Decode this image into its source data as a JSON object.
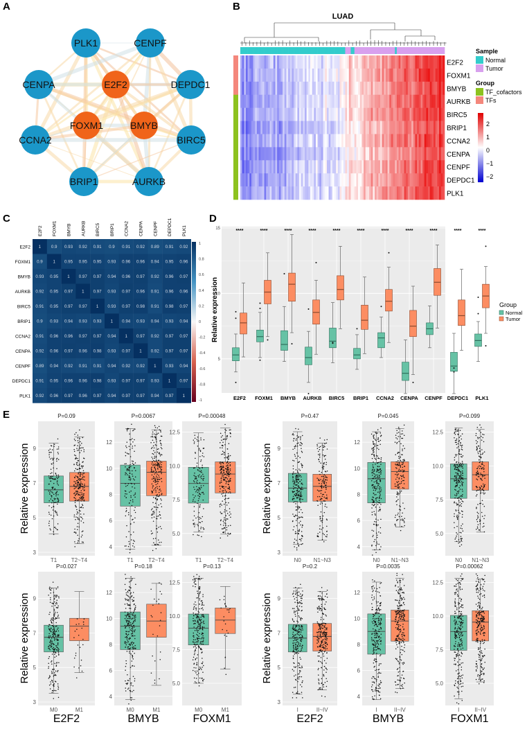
{
  "panel_labels": {
    "a": "A",
    "b": "B",
    "c": "C",
    "d": "D",
    "e": "E"
  },
  "colors": {
    "node_tf_cofactor": "#1b97c9",
    "node_tf": "#f0641a",
    "normal": "#66c2a5",
    "tumor": "#fc8d62",
    "sample_normal": "#33cccc",
    "sample_tumor": "#d8a0ee",
    "group_tf_cofactors": "#8dc21f",
    "group_tfs": "#f4877c",
    "panel_bg": "#ebebeb"
  },
  "chart_data": [
    {
      "panel": "A",
      "type": "network",
      "fully_connected": true,
      "nodes": [
        {
          "name": "PLK1",
          "kind": "TF_cofactor"
        },
        {
          "name": "CENPF",
          "kind": "TF_cofactor"
        },
        {
          "name": "CENPA",
          "kind": "TF_cofactor"
        },
        {
          "name": "E2F2",
          "kind": "TF"
        },
        {
          "name": "DEPDC1",
          "kind": "TF_cofactor"
        },
        {
          "name": "FOXM1",
          "kind": "TF"
        },
        {
          "name": "BMYB",
          "kind": "TF"
        },
        {
          "name": "CCNA2",
          "kind": "TF_cofactor"
        },
        {
          "name": "BIRC5",
          "kind": "TF_cofactor"
        },
        {
          "name": "BRIP1",
          "kind": "TF_cofactor"
        },
        {
          "name": "AURKB",
          "kind": "TF_cofactor"
        }
      ]
    },
    {
      "panel": "B",
      "type": "heatmap",
      "title": "LUAD",
      "rows": [
        "E2F2",
        "FOXM1",
        "BMYB",
        "AURKB",
        "BIRC5",
        "BRIP1",
        "CCNA2",
        "CENPA",
        "CENPF",
        "DEPDC1",
        "PLK1"
      ],
      "row_groups": [
        "TFs",
        "TFs",
        "TFs",
        "TF_cofactors",
        "TF_cofactors",
        "TF_cofactors",
        "TF_cofactors",
        "TF_cofactors",
        "TF_cofactors",
        "TF_cofactors",
        "TF_cofactors"
      ],
      "sample_runs": [
        [
          "Normal",
          57
        ],
        [
          "Tumor",
          3
        ],
        [
          "Normal",
          2
        ],
        [
          "Tumor",
          22
        ],
        [
          "Normal",
          1
        ],
        [
          "Tumor",
          26
        ]
      ],
      "legend": {
        "sample_title": "Sample",
        "sample_items": [
          "Normal",
          "Tumor"
        ],
        "group_title": "Group",
        "group_items": [
          "TF_cofactors",
          "TFs"
        ],
        "scale_ticks": [
          "2",
          "1",
          "0",
          "−1",
          "−2"
        ],
        "scale_range": [
          -2.5,
          2.5
        ]
      }
    },
    {
      "panel": "C",
      "type": "heatmap",
      "labels": [
        "E2F2",
        "FOXM1",
        "BMYB",
        "AURKB",
        "BIRC5",
        "BRIP1",
        "CCNA2",
        "CENPA",
        "CENPF",
        "DEPDC1",
        "PLK1"
      ],
      "matrix": [
        [
          1,
          0.9,
          0.93,
          0.92,
          0.91,
          0.9,
          0.91,
          0.92,
          0.89,
          0.91,
          0.92
        ],
        [
          0.9,
          1,
          0.95,
          0.95,
          0.95,
          0.93,
          0.96,
          0.96,
          0.94,
          0.95,
          0.96
        ],
        [
          0.93,
          0.95,
          1,
          0.97,
          0.97,
          0.94,
          0.96,
          0.97,
          0.92,
          0.96,
          0.97
        ],
        [
          0.92,
          0.95,
          0.97,
          1,
          0.97,
          0.93,
          0.97,
          0.96,
          0.91,
          0.96,
          0.96
        ],
        [
          0.91,
          0.95,
          0.97,
          0.97,
          1,
          0.93,
          0.97,
          0.98,
          0.91,
          0.98,
          0.97
        ],
        [
          0.9,
          0.93,
          0.94,
          0.93,
          0.93,
          1,
          0.94,
          0.93,
          0.94,
          0.93,
          0.94
        ],
        [
          0.91,
          0.96,
          0.96,
          0.97,
          0.97,
          0.94,
          1,
          0.97,
          0.92,
          0.97,
          0.97
        ],
        [
          0.92,
          0.96,
          0.97,
          0.96,
          0.98,
          0.93,
          0.97,
          1,
          0.92,
          0.97,
          0.97
        ],
        [
          0.89,
          0.94,
          0.92,
          0.91,
          0.91,
          0.94,
          0.92,
          0.92,
          1,
          0.93,
          0.94
        ],
        [
          0.91,
          0.95,
          0.96,
          0.96,
          0.98,
          0.93,
          0.97,
          0.97,
          0.93,
          1,
          0.97
        ],
        [
          0.92,
          0.96,
          0.97,
          0.96,
          0.97,
          0.94,
          0.97,
          0.97,
          0.94,
          0.97,
          1
        ]
      ],
      "colorbar_ticks": [
        "1",
        "0.8",
        "0.6",
        "0.4",
        "0.2",
        "0",
        "-0.2",
        "-0.4",
        "-0.6",
        "-0.8",
        "-1"
      ],
      "colorbar_range": [
        -1,
        1
      ]
    },
    {
      "panel": "D",
      "type": "box",
      "ylabel": "Relative expression",
      "ylim": [
        2.4,
        15.1
      ],
      "yticks": [
        "5",
        "10",
        "15"
      ],
      "grid": true,
      "legend": {
        "title": "Group",
        "items": [
          "Normal",
          "Tumor"
        ],
        "placement": "right"
      },
      "significance": "****",
      "categories": [
        "E2F2",
        "FOXM1",
        "BMYB",
        "AURKB",
        "BIRC5",
        "BRIP1",
        "CCNA2",
        "CENPA",
        "CENPF",
        "DEPDC1",
        "PLK1"
      ],
      "series": [
        {
          "name": "Normal",
          "boxes": [
            {
              "box": [
                4.0,
                4.85,
                5.3,
                5.85,
                6.9
              ],
              "outliers": [
                3.2,
                8.1,
                8.6
              ]
            },
            {
              "box": [
                5.1,
                6.3,
                6.7,
                7.2,
                8.55
              ],
              "outliers": [
                4.9,
                8.85,
                9.25
              ]
            },
            {
              "box": [
                4.8,
                5.65,
                6.1,
                7.15,
                9.0
              ],
              "outliers": [
                11.5
              ]
            },
            {
              "box": [
                3.2,
                4.55,
                5.1,
                5.9,
                7.1
              ],
              "outliers": [
                2.35,
                8.8
              ]
            },
            {
              "box": [
                4.7,
                5.85,
                6.35,
                7.35,
                9.3
              ],
              "outliers": [
                6.2,
                6.25
              ]
            },
            {
              "box": [
                4.2,
                5.0,
                5.3,
                5.8,
                6.85
              ],
              "outliers": [
                7.3
              ]
            },
            {
              "box": [
                5.1,
                5.85,
                6.6,
                7.0,
                8.2
              ],
              "outliers": [
                9.0
              ]
            },
            {
              "box": [
                2.35,
                3.35,
                3.9,
                4.75,
                6.45
              ],
              "outliers": []
            },
            {
              "box": [
                5.85,
                6.85,
                7.3,
                7.75,
                9.05
              ],
              "outliers": []
            },
            {
              "box": [
                2.35,
                4.05,
                4.45,
                5.5,
                6.95
              ],
              "outliers": [
                4.0,
                4.3
              ]
            },
            {
              "box": [
                4.8,
                5.95,
                6.4,
                6.9,
                7.85
              ],
              "outliers": [
                8.45,
                9.7
              ]
            }
          ]
        },
        {
          "name": "Tumor",
          "boxes": [
            {
              "box": [
                5.15,
                6.9,
                7.75,
                8.5,
                10.8
              ],
              "outliers": []
            },
            {
              "box": [
                6.7,
                9.2,
                10.1,
                11.0,
                13.1
              ],
              "outliers": [
                6.45
              ]
            },
            {
              "box": [
                7.0,
                9.4,
                10.7,
                11.55,
                14.5
              ],
              "outliers": [
                6.15
              ]
            },
            {
              "box": [
                5.35,
                7.65,
                8.55,
                9.5,
                11.0
              ],
              "outliers": [
                12.35
              ]
            },
            {
              "box": [
                7.3,
                9.5,
                10.3,
                11.35,
                13.6
              ],
              "outliers": []
            },
            {
              "box": [
                5.4,
                7.25,
                7.95,
                9.1,
                11.25
              ],
              "outliers": []
            },
            {
              "box": [
                6.25,
                8.65,
                9.4,
                10.3,
                12.0
              ],
              "outliers": [
                13.1
              ]
            },
            {
              "box": [
                3.8,
                6.7,
                7.5,
                8.7,
                10.55
              ],
              "outliers": [
                3.2
              ]
            },
            {
              "box": [
                7.35,
                9.85,
                10.85,
                11.9,
                13.7
              ],
              "outliers": []
            },
            {
              "box": [
                5.65,
                7.55,
                8.3,
                9.5,
                11.85
              ],
              "outliers": []
            },
            {
              "box": [
                6.95,
                8.9,
                9.8,
                10.7,
                12.05
              ],
              "outliers": [
                6.0,
                13.6
              ]
            }
          ]
        }
      ]
    },
    {
      "panel": "E",
      "type": "box",
      "ylabel": "Relative expression",
      "gene_axes": {
        "E2F2": {
          "ylim": [
            2.8,
            10.55
          ],
          "yticks": [
            "3",
            "5",
            "7",
            "9"
          ]
        },
        "BMYB": {
          "ylim": [
            3.3,
            13.6
          ],
          "yticks": [
            "4",
            "6",
            "8",
            "10",
            "12"
          ]
        },
        "FOXM1": {
          "ylim": [
            3.35,
            13.3
          ],
          "yticks": [
            "5.0",
            "7.5",
            "10.0",
            "12.5"
          ]
        }
      },
      "bottom_labels": [
        "E2F2",
        "BMYB",
        "FOXM1",
        "E2F2",
        "BMYB",
        "FOXM1"
      ],
      "subplots": [
        {
          "gene": "E2F2",
          "p": "P=0.09",
          "groups": [
            {
              "label": "T1",
              "box": [
                4.05,
                5.85,
                6.6,
                7.4,
                9.3
              ]
            },
            {
              "label": "T2~T4",
              "box": [
                3.5,
                5.95,
                6.8,
                7.6,
                9.65
              ]
            }
          ]
        },
        {
          "gene": "BMYB",
          "p": "P=0.0067",
          "groups": [
            {
              "label": "T1",
              "box": [
                3.8,
                7.1,
                8.85,
                10.25,
                13.05
              ]
            },
            {
              "label": "T2~T4",
              "box": [
                4.1,
                7.9,
                9.7,
                10.55,
                12.95
              ]
            }
          ]
        },
        {
          "gene": "FOXM1",
          "p": "P=0.00048",
          "groups": [
            {
              "label": "T1",
              "box": [
                5.1,
                7.25,
                8.7,
                9.9,
                12.45
              ]
            },
            {
              "label": "T2~T4",
              "box": [
                4.95,
                8.0,
                9.4,
                10.3,
                12.8
              ]
            }
          ]
        },
        {
          "gene": "E2F2",
          "p": "P=0.47",
          "groups": [
            {
              "label": "N0",
              "box": [
                3.45,
                5.9,
                6.7,
                7.55,
                9.95
              ]
            },
            {
              "label": "N1~N3",
              "box": [
                3.7,
                5.95,
                6.8,
                7.5,
                9.3
              ]
            }
          ]
        },
        {
          "gene": "BMYB",
          "p": "P=0.045",
          "groups": [
            {
              "label": "N0",
              "box": [
                3.75,
                7.35,
                9.2,
                10.45,
                12.8
              ]
            },
            {
              "label": "N1~N3",
              "box": [
                5.5,
                8.4,
                9.75,
                10.5,
                13.05
              ]
            }
          ]
        },
        {
          "gene": "FOXM1",
          "p": "P=0.099",
          "groups": [
            {
              "label": "N0",
              "box": [
                4.4,
                7.6,
                9.05,
                10.15,
                12.8
              ]
            },
            {
              "label": "N1~N3",
              "box": [
                5.1,
                8.2,
                9.35,
                10.3,
                12.7
              ]
            }
          ]
        },
        {
          "gene": "E2F2",
          "p": "P=0.027",
          "groups": [
            {
              "label": "M0",
              "box": [
                3.5,
                5.9,
                6.75,
                7.45,
                9.6
              ]
            },
            {
              "label": "M1",
              "box": [
                4.7,
                6.55,
                7.4,
                7.85,
                9.4
              ]
            }
          ]
        },
        {
          "gene": "BMYB",
          "p": "P=0.18",
          "groups": [
            {
              "label": "M0",
              "box": [
                3.75,
                7.6,
                9.4,
                10.5,
                13.1
              ]
            },
            {
              "label": "M1",
              "box": [
                4.85,
                8.55,
                9.8,
                11.1,
                12.7
              ]
            }
          ]
        },
        {
          "gene": "FOXM1",
          "p": "P=0.13",
          "groups": [
            {
              "label": "M0",
              "box": [
                5.0,
                7.85,
                9.1,
                10.15,
                12.8
              ]
            },
            {
              "label": "M1",
              "box": [
                6.05,
                8.7,
                9.7,
                10.6,
                12.2
              ]
            }
          ]
        },
        {
          "gene": "E2F2",
          "p": "P=0.2",
          "groups": [
            {
              "label": "I",
              "box": [
                3.45,
                5.9,
                6.7,
                7.5,
                9.6
              ]
            },
            {
              "label": "II~IV",
              "box": [
                3.7,
                5.95,
                6.8,
                7.55,
                9.4
              ]
            }
          ]
        },
        {
          "gene": "BMYB",
          "p": "P=0.0035",
          "groups": [
            {
              "label": "I",
              "box": [
                3.75,
                7.25,
                9.0,
                10.35,
                12.8
              ]
            },
            {
              "label": "II~IV",
              "box": [
                4.6,
                8.25,
                9.8,
                10.65,
                13.1
              ]
            }
          ]
        },
        {
          "gene": "FOXM1",
          "p": "P=0.00062",
          "groups": [
            {
              "label": "I",
              "box": [
                3.85,
                7.45,
                8.85,
                10.05,
                12.8
              ]
            },
            {
              "label": "II~IV",
              "box": [
                5.1,
                8.15,
                9.55,
                10.4,
                12.75
              ]
            }
          ]
        }
      ]
    }
  ]
}
